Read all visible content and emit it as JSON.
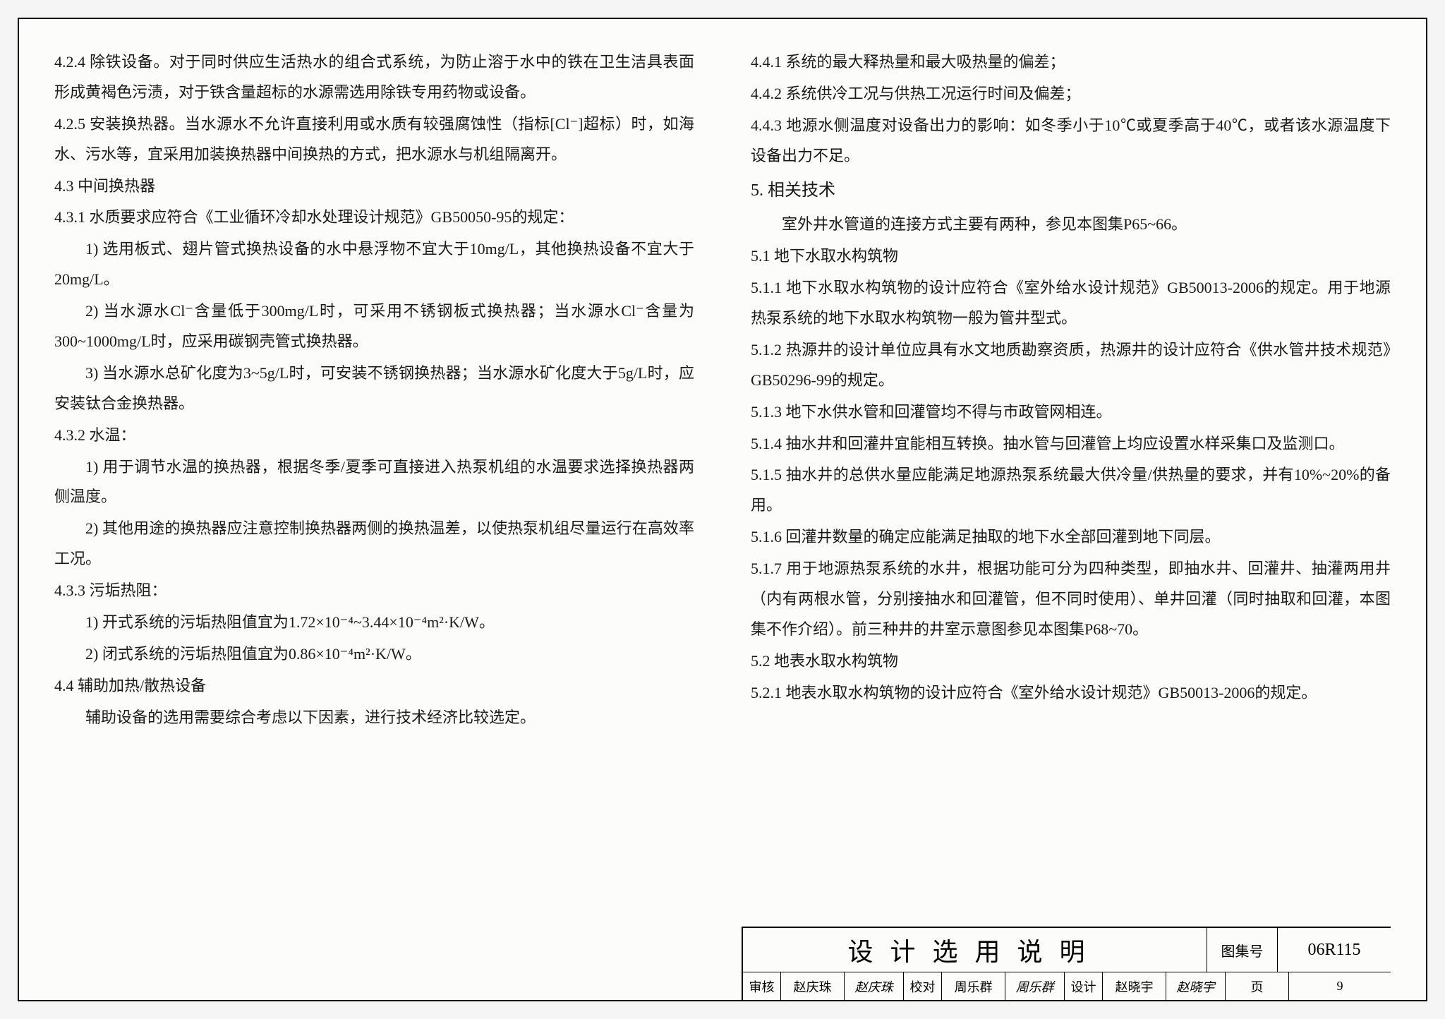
{
  "left_column": [
    {
      "cls": "para",
      "text": "4.2.4 除铁设备。对于同时供应生活热水的组合式系统，为防止溶于水中的铁在卫生洁具表面形成黄褐色污渍，对于铁含量超标的水源需选用除铁专用药物或设备。"
    },
    {
      "cls": "para",
      "text": "4.2.5 安装换热器。当水源水不允许直接利用或水质有较强腐蚀性（指标[Cl⁻]超标）时，如海水、污水等，宜采用加装换热器中间换热的方式，把水源水与机组隔离开。"
    },
    {
      "cls": "para",
      "text": "4.3 中间换热器"
    },
    {
      "cls": "para",
      "text": "4.3.1 水质要求应符合《工业循环冷却水处理设计规范》GB50050-95的规定："
    },
    {
      "cls": "para indent",
      "text": "1) 选用板式、翅片管式换热设备的水中悬浮物不宜大于10mg/L，其他换热设备不宜大于20mg/L。"
    },
    {
      "cls": "para indent",
      "text": "2) 当水源水Cl⁻含量低于300mg/L时，可采用不锈钢板式换热器；当水源水Cl⁻含量为300~1000mg/L时，应采用碳钢壳管式换热器。"
    },
    {
      "cls": "para indent",
      "text": "3) 当水源水总矿化度为3~5g/L时，可安装不锈钢换热器；当水源水矿化度大于5g/L时，应安装钛合金换热器。"
    },
    {
      "cls": "para",
      "text": "4.3.2 水温："
    },
    {
      "cls": "para indent",
      "text": "1) 用于调节水温的换热器，根据冬季/夏季可直接进入热泵机组的水温要求选择换热器两侧温度。"
    },
    {
      "cls": "para indent",
      "text": "2) 其他用途的换热器应注意控制换热器两侧的换热温差，以使热泵机组尽量运行在高效率工况。"
    },
    {
      "cls": "para",
      "text": "4.3.3 污垢热阻："
    },
    {
      "cls": "para indent",
      "text": "1) 开式系统的污垢热阻值宜为1.72×10⁻⁴~3.44×10⁻⁴m²·K/W。"
    },
    {
      "cls": "para indent",
      "text": "2) 闭式系统的污垢热阻值宜为0.86×10⁻⁴m²·K/W。"
    },
    {
      "cls": "para",
      "text": "4.4 辅助加热/散热设备"
    },
    {
      "cls": "para indent",
      "text": "辅助设备的选用需要综合考虑以下因素，进行技术经济比较选定。"
    }
  ],
  "right_column": [
    {
      "cls": "para",
      "text": "4.4.1 系统的最大释热量和最大吸热量的偏差；"
    },
    {
      "cls": "para",
      "text": "4.4.2 系统供冷工况与供热工况运行时间及偏差；"
    },
    {
      "cls": "para",
      "text": "4.4.3 地源水侧温度对设备出力的影响：如冬季小于10℃或夏季高于40℃，或者该水源温度下设备出力不足。"
    },
    {
      "cls": "section-title",
      "text": "5. 相关技术"
    },
    {
      "cls": "para indent",
      "text": "室外井水管道的连接方式主要有两种，参见本图集P65~66。"
    },
    {
      "cls": "para",
      "text": "5.1 地下水取水构筑物"
    },
    {
      "cls": "para",
      "text": "5.1.1 地下水取水构筑物的设计应符合《室外给水设计规范》GB50013-2006的规定。用于地源热泵系统的地下水取水构筑物一般为管井型式。"
    },
    {
      "cls": "para",
      "text": "5.1.2 热源井的设计单位应具有水文地质勘察资质，热源井的设计应符合《供水管井技术规范》GB50296-99的规定。"
    },
    {
      "cls": "para",
      "text": "5.1.3 地下水供水管和回灌管均不得与市政管网相连。"
    },
    {
      "cls": "para",
      "text": "5.1.4 抽水井和回灌井宜能相互转换。抽水管与回灌管上均应设置水样采集口及监测口。"
    },
    {
      "cls": "para",
      "text": "5.1.5 抽水井的总供水量应能满足地源热泵系统最大供冷量/供热量的要求，并有10%~20%的备用。"
    },
    {
      "cls": "para",
      "text": "5.1.6 回灌井数量的确定应能满足抽取的地下水全部回灌到地下同层。"
    },
    {
      "cls": "para",
      "text": "5.1.7 用于地源热泵系统的水井，根据功能可分为四种类型，即抽水井、回灌井、抽灌两用井（内有两根水管，分别接抽水和回灌管，但不同时使用）、单井回灌（同时抽取和回灌，本图集不作介绍）。前三种井的井室示意图参见本图集P68~70。"
    },
    {
      "cls": "para",
      "text": "5.2 地表水取水构筑物"
    },
    {
      "cls": "para",
      "text": "5.2.1 地表水取水构筑物的设计应符合《室外给水设计规范》GB50013-2006的规定。"
    }
  ],
  "footer": {
    "title": "设计选用说明",
    "drawing_set_label": "图集号",
    "drawing_set_code": "06R115",
    "approval": {
      "review_label": "审核",
      "review_name": "赵庆珠",
      "review_sig": "赵庆珠",
      "check_label": "校对",
      "check_name": "周乐群",
      "check_sig": "周乐群",
      "design_label": "设计",
      "design_name": "赵晓宇",
      "design_sig": "赵晓宇",
      "page_label": "页",
      "page_number": "9"
    }
  }
}
